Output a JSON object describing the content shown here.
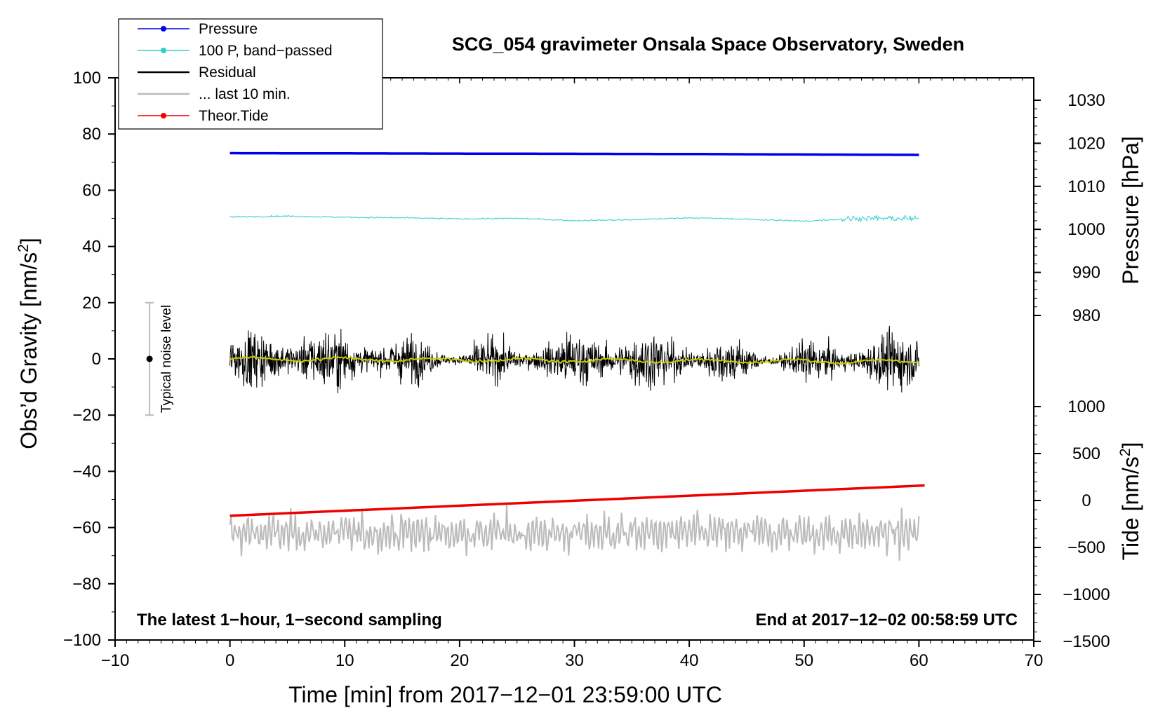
{
  "chart_data": {
    "type": "line",
    "title": "SCG_054 gravimeter Onsala Space Observatory, Sweden",
    "xlabel": "Time [min] from 2017−12−01 23:59:00 UTC",
    "ylabel_left": "Obs’d Gravity [nm/s",
    "ylabel_left_sup": "2",
    "ylabel_left_end": "]",
    "ylabel_right_top": "Pressure [hPa]",
    "ylabel_right_bottom": "Tide [nm/s",
    "ylabel_right_bottom_sup": "2",
    "ylabel_right_bottom_end": "]",
    "xlim": [
      -10,
      70
    ],
    "ylim": [
      -100,
      100
    ],
    "pressure_ticks": [
      {
        "value": 1030,
        "label": "1030"
      },
      {
        "value": 1020,
        "label": "1020"
      },
      {
        "value": 1010,
        "label": "1010"
      },
      {
        "value": 1000,
        "label": "1000"
      },
      {
        "value": 990,
        "label": "990"
      },
      {
        "value": 980,
        "label": "980"
      }
    ],
    "tide_ticks": [
      {
        "value": 1000,
        "label": "1000"
      },
      {
        "value": 500,
        "label": "500"
      },
      {
        "value": 0,
        "label": "0"
      },
      {
        "value": -500,
        "label": "−500"
      },
      {
        "value": -1000,
        "label": "−1000"
      },
      {
        "value": -1500,
        "label": "−1500"
      }
    ],
    "x_ticks": [
      {
        "value": -10,
        "label": "−10"
      },
      {
        "value": 0,
        "label": "0"
      },
      {
        "value": 10,
        "label": "10"
      },
      {
        "value": 20,
        "label": "20"
      },
      {
        "value": 30,
        "label": "30"
      },
      {
        "value": 40,
        "label": "40"
      },
      {
        "value": 50,
        "label": "50"
      },
      {
        "value": 60,
        "label": "60"
      },
      {
        "value": 70,
        "label": "70"
      }
    ],
    "y_ticks": [
      {
        "value": 100,
        "label": "100"
      },
      {
        "value": 80,
        "label": "80"
      },
      {
        "value": 60,
        "label": "60"
      },
      {
        "value": 40,
        "label": "40"
      },
      {
        "value": 20,
        "label": "20"
      },
      {
        "value": 0,
        "label": "0"
      },
      {
        "value": -20,
        "label": "−20"
      },
      {
        "value": -40,
        "label": "−40"
      },
      {
        "value": -60,
        "label": "−60"
      },
      {
        "value": -80,
        "label": "−80"
      },
      {
        "value": -100,
        "label": "−100"
      }
    ],
    "series": [
      {
        "name": "Pressure",
        "color": "#0000ee",
        "style": "line-dot",
        "x": [
          0,
          20,
          40,
          60
        ],
        "values": [
          1017.7,
          1017.6,
          1017.5,
          1017.3
        ]
      },
      {
        "name": "100 P, band−passed",
        "color": "#33cccc",
        "style": "line-dot",
        "x": [
          0,
          5,
          10,
          15,
          20,
          25,
          30,
          35,
          40,
          45,
          50,
          55,
          60
        ],
        "values": [
          50.5,
          50.8,
          50.4,
          50.2,
          49.8,
          50.0,
          49.2,
          49.5,
          50.2,
          49.7,
          49.0,
          50.1,
          49.8
        ]
      },
      {
        "name": "Residual",
        "color": "#000000",
        "style": "line",
        "x": [
          0,
          60
        ],
        "values": [
          0,
          -1
        ]
      },
      {
        "name": "... last 10 min.",
        "color": "#bbbbbb",
        "style": "line",
        "x": [
          0,
          60
        ],
        "values": [
          -62,
          -62
        ]
      },
      {
        "name": "Theor.Tide",
        "color": "#ee0000",
        "style": "line-dot",
        "x": [
          0,
          60.5
        ],
        "values": [
          -162,
          160
        ]
      }
    ],
    "residual_mean_color": "#cccc00",
    "noise_bar": {
      "label": "Typical noise level",
      "x": -7,
      "low": -20,
      "high": 20,
      "center": 0
    },
    "note_left": "The latest 1−hour, 1−second sampling",
    "note_right": "End at 2017−12−02 00:58:59 UTC",
    "legend_position": "top-left"
  }
}
